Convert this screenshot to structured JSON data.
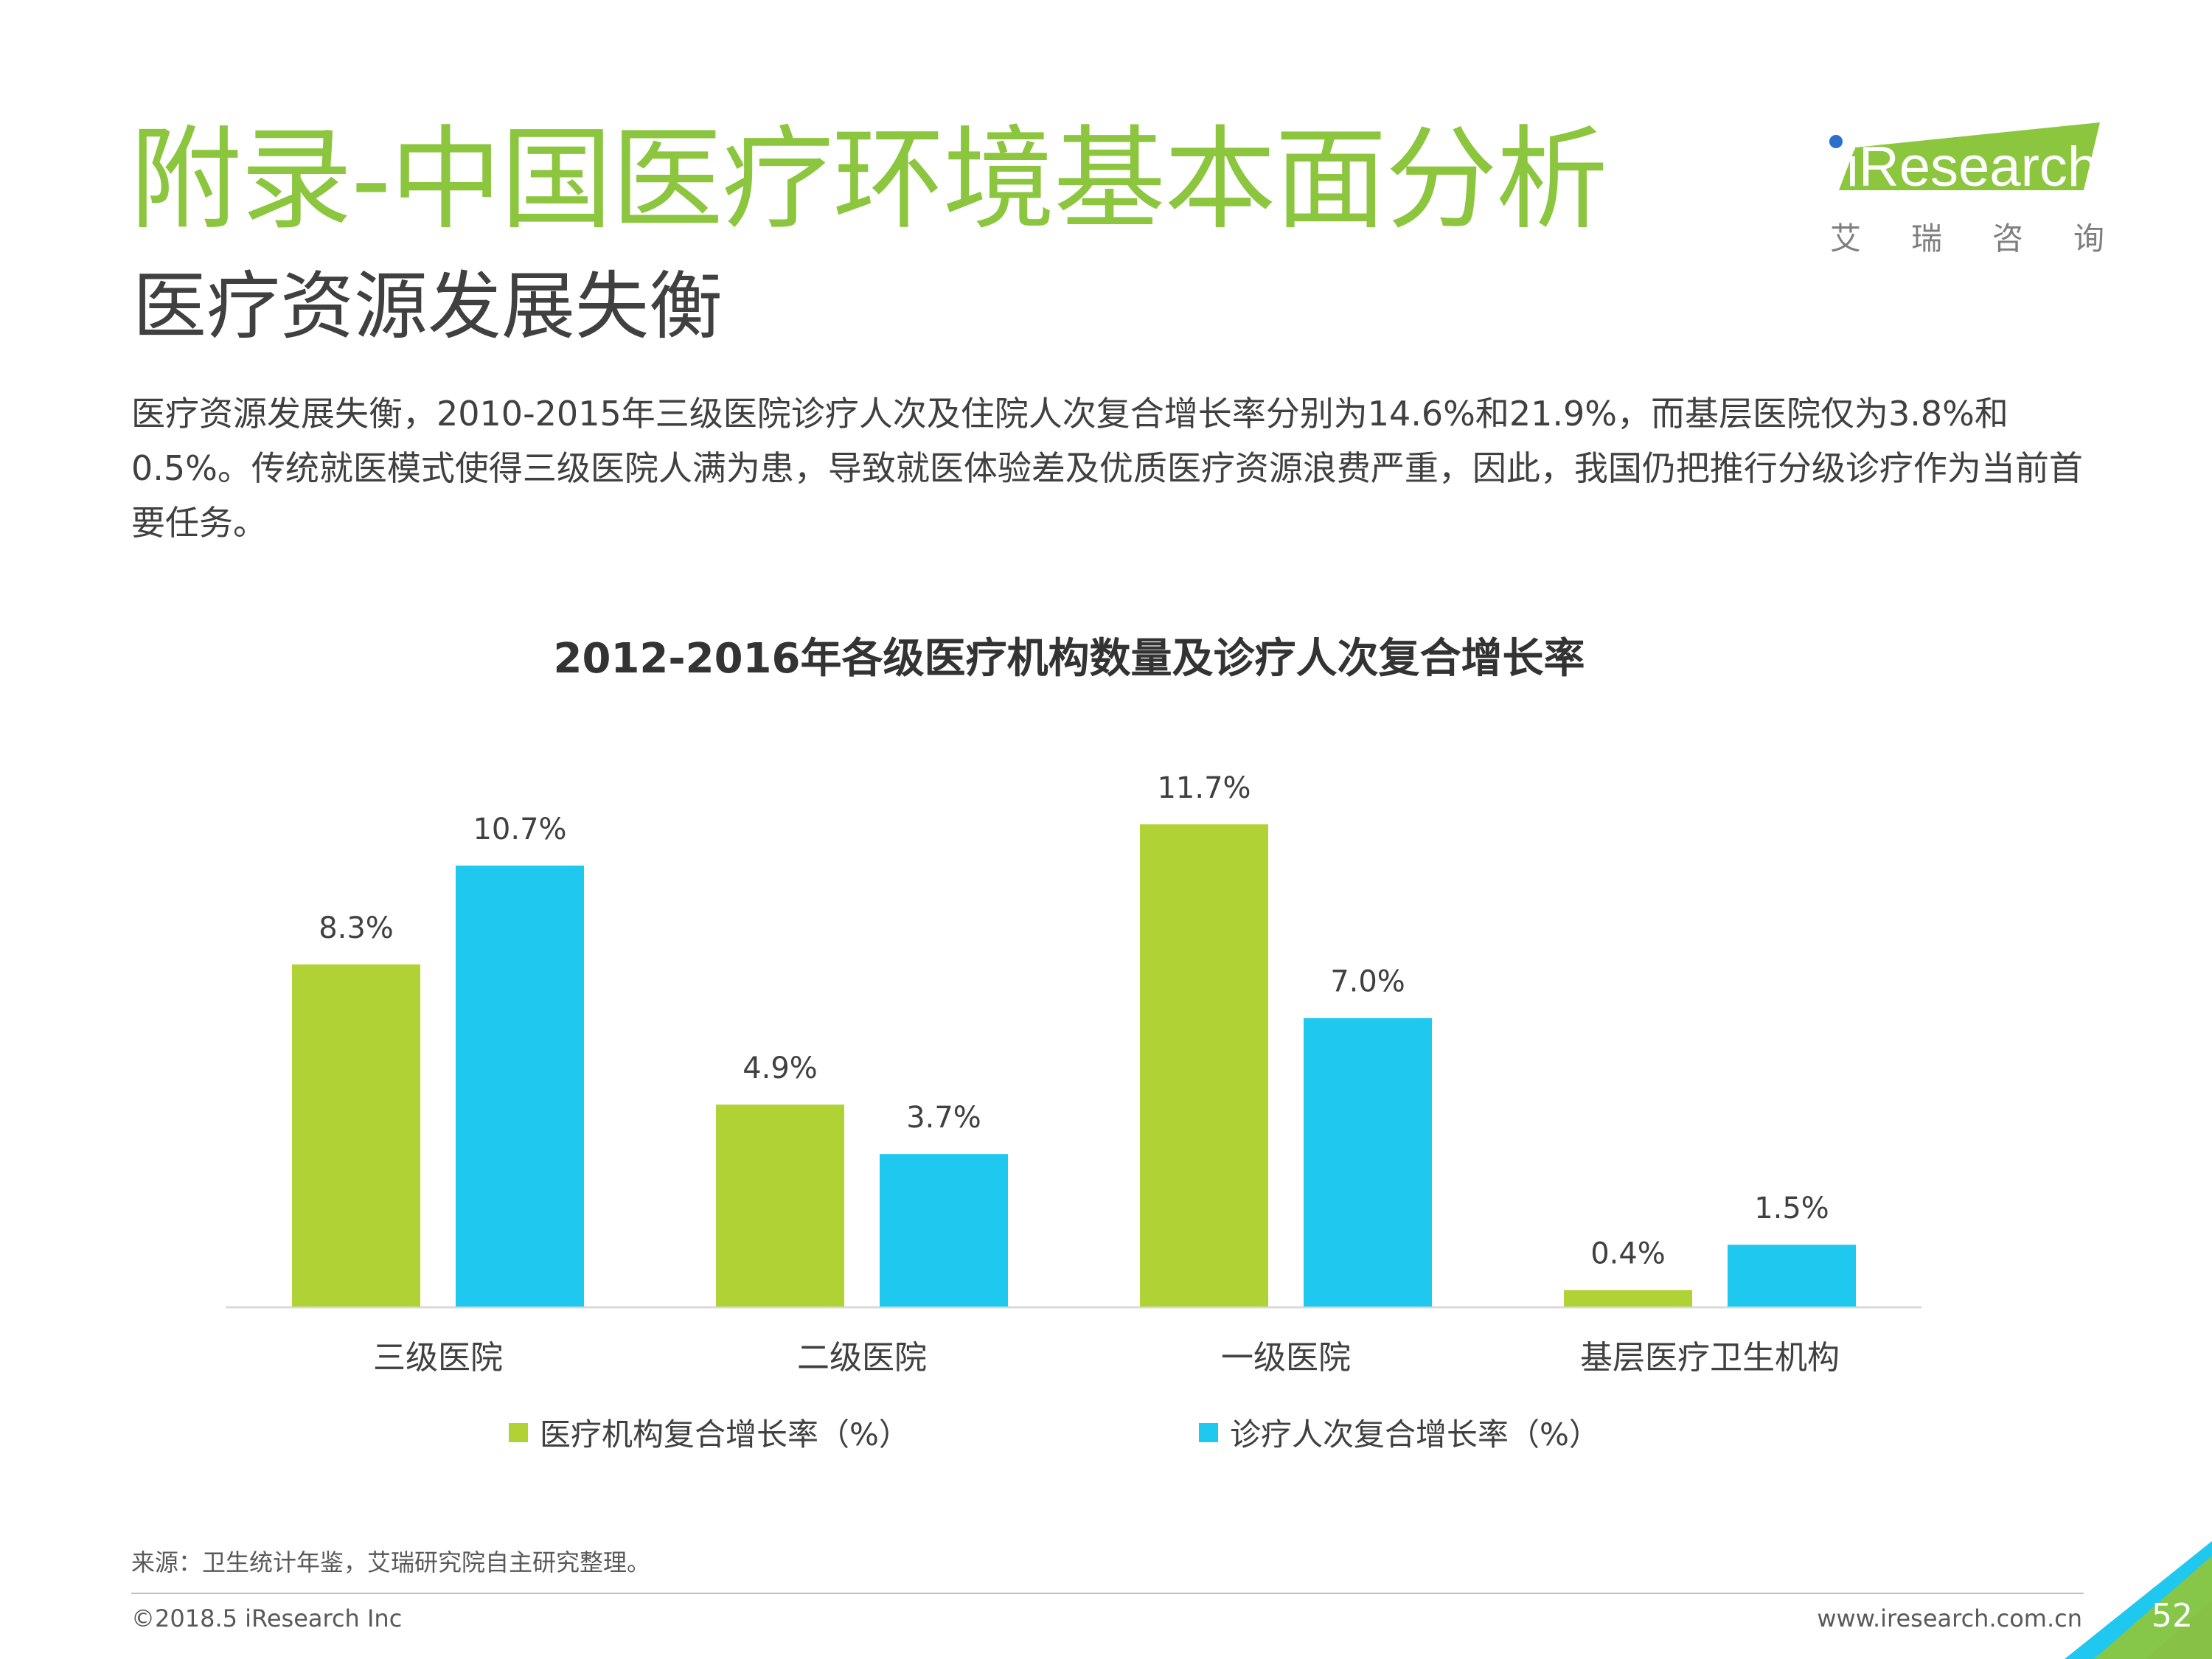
{
  "header": {
    "title": "附录-中国医疗环境基本面分析",
    "subtitle": "医疗资源发展失衡",
    "description": "医疗资源发展失衡，2010-2015年三级医院诊疗人次及住院人次复合增长率分别为14.6%和21.9%，而基层医院仅为3.8%和0.5%。传统就医模式使得三级医院人满为患，导致就医体验差及优质医疗资源浪费严重，因此，我国仍把推行分级诊疗作为当前首要任务。"
  },
  "logo": {
    "brand": "iResearch",
    "chinese_chars": [
      "艾",
      "瑞",
      "咨",
      "询"
    ]
  },
  "colors": {
    "accent_green": "#8cc63f",
    "series1": "#b0d235",
    "series2": "#1fc8ef"
  },
  "chart_data": {
    "type": "bar",
    "title": "2012-2016年各级医疗机构数量及诊疗人次复合增长率",
    "categories": [
      "三级医院",
      "二级医院",
      "一级医院",
      "基层医疗卫生机构"
    ],
    "series": [
      {
        "name": "医疗机构复合增长率（%）",
        "values": [
          8.3,
          4.9,
          11.7,
          0.4
        ],
        "color": "#b0d235"
      },
      {
        "name": "诊疗人次复合增长率（%）",
        "values": [
          10.7,
          3.7,
          7.0,
          1.5
        ],
        "color": "#1fc8ef"
      }
    ],
    "data_labels": [
      [
        "8.3%",
        "4.9%",
        "11.7%",
        "0.4%"
      ],
      [
        "10.7%",
        "3.7%",
        "7.0%",
        "1.5%"
      ]
    ],
    "xlabel": "",
    "ylabel": "",
    "ylim": [
      0,
      11.7
    ],
    "grid": false,
    "legend_position": "bottom"
  },
  "footer": {
    "source": "来源：卫生统计年鉴，艾瑞研究院自主研究整理。",
    "copyright": "©2018.5 iResearch Inc",
    "website": "www.iresearch.com.cn",
    "page_number": "52"
  }
}
